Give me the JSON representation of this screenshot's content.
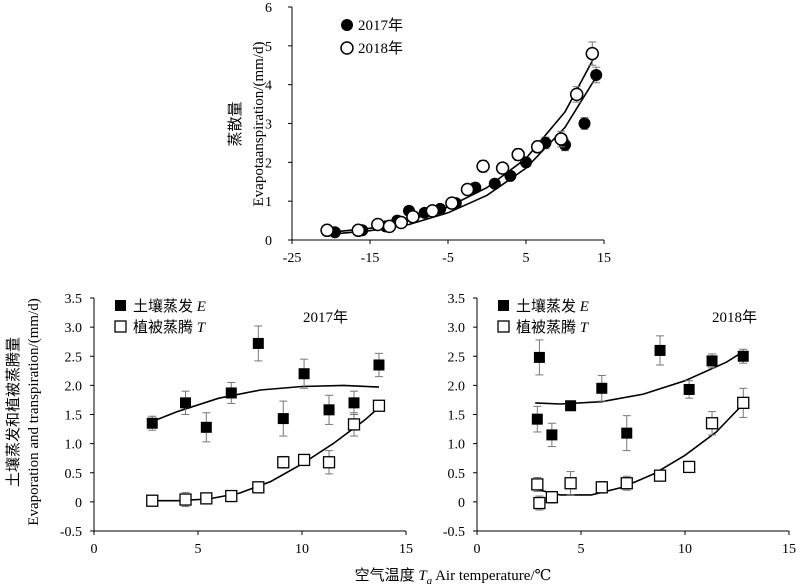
{
  "figure": {
    "shared_xlabel": "空气温度 Ta Air temperature/℃",
    "shared_xlabel_parts": {
      "cn": "空气温度 ",
      "sym": "T",
      "sub": "a",
      "en": " Air temperature/℃"
    },
    "bottom_ylabel_cn": "土壤蒸发和植被蒸腾量",
    "bottom_ylabel_en": "Evaporation and transpiration/(mm/d)"
  },
  "chart_data": [
    {
      "type": "scatter",
      "panel": "top",
      "ylabel_cn": "蒸散量",
      "ylabel_en": "Evapotaanspiration/(mm/d)",
      "xlim": [
        -25,
        15
      ],
      "ylim": [
        0,
        6
      ],
      "xticks": [
        "-25",
        "-15",
        "-5",
        "5",
        "15"
      ],
      "yticks": [
        "0",
        "1",
        "2",
        "3",
        "4",
        "5",
        "6"
      ],
      "legend_position": "top-left",
      "series": [
        {
          "name": "2017年",
          "marker": "filled-circle",
          "color": "#000000",
          "points": [
            [
              -19.5,
              0.2
            ],
            [
              -16,
              0.25
            ],
            [
              -13,
              0.35
            ],
            [
              -11.5,
              0.5
            ],
            [
              -10,
              0.75
            ],
            [
              -8,
              0.7
            ],
            [
              -6,
              0.8
            ],
            [
              -4,
              0.95
            ],
            [
              -1.5,
              1.35
            ],
            [
              1,
              1.45
            ],
            [
              3,
              1.65
            ],
            [
              5,
              2.0
            ],
            [
              7.5,
              2.5
            ],
            [
              10,
              2.45
            ],
            [
              12.5,
              3.0
            ],
            [
              14,
              4.25
            ]
          ],
          "errors": [
            0.05,
            0.06,
            0.05,
            0.08,
            0.1,
            0.08,
            0.08,
            0.08,
            0.12,
            0.1,
            0.1,
            0.1,
            0.15,
            0.15,
            0.15,
            0.2
          ],
          "fit": [
            [
              -20,
              0.15
            ],
            [
              -15,
              0.24
            ],
            [
              -10,
              0.4
            ],
            [
              -5,
              0.7
            ],
            [
              0,
              1.15
            ],
            [
              5,
              1.85
            ],
            [
              10,
              2.9
            ],
            [
              14,
              4.2
            ]
          ]
        },
        {
          "name": "2018年",
          "marker": "open-circle",
          "color": "#000000",
          "points": [
            [
              -20.5,
              0.25
            ],
            [
              -16.5,
              0.25
            ],
            [
              -14,
              0.4
            ],
            [
              -12.5,
              0.35
            ],
            [
              -11,
              0.45
            ],
            [
              -9.5,
              0.6
            ],
            [
              -7,
              0.75
            ],
            [
              -4.5,
              0.95
            ],
            [
              -2.5,
              1.3
            ],
            [
              -0.5,
              1.9
            ],
            [
              2,
              1.85
            ],
            [
              4,
              2.2
            ],
            [
              6.5,
              2.4
            ],
            [
              9.5,
              2.6
            ],
            [
              11.5,
              3.75
            ],
            [
              13.5,
              4.8
            ]
          ],
          "errors": [
            0.05,
            0.05,
            0.05,
            0.05,
            0.06,
            0.08,
            0.08,
            0.1,
            0.12,
            0.15,
            0.12,
            0.15,
            0.15,
            0.2,
            0.2,
            0.3
          ],
          "fit": [
            [
              -20,
              0.2
            ],
            [
              -15,
              0.3
            ],
            [
              -10,
              0.5
            ],
            [
              -5,
              0.85
            ],
            [
              0,
              1.35
            ],
            [
              5,
              2.1
            ],
            [
              10,
              3.3
            ],
            [
              14,
              4.8
            ]
          ]
        }
      ]
    },
    {
      "type": "scatter",
      "panel": "bottom-left",
      "title": "2017年",
      "xlim": [
        0,
        15
      ],
      "ylim": [
        -0.5,
        3.5
      ],
      "xticks": [
        "0",
        "5",
        "10",
        "15"
      ],
      "yticks": [
        "-0.5",
        "0",
        "0.5",
        "1.0",
        "1.5",
        "2.0",
        "2.5",
        "3.0",
        "3.5"
      ],
      "legend_position": "top-left",
      "series": [
        {
          "name": "土壤蒸发 E",
          "name_cn": "土壤蒸发 ",
          "name_sym": "E",
          "marker": "filled-square",
          "points": [
            [
              2.8,
              1.35
            ],
            [
              4.4,
              1.7
            ],
            [
              5.4,
              1.28
            ],
            [
              6.6,
              1.87
            ],
            [
              7.9,
              2.72
            ],
            [
              9.1,
              1.43
            ],
            [
              10.1,
              2.2
            ],
            [
              11.3,
              1.58
            ],
            [
              12.5,
              1.7
            ],
            [
              13.7,
              2.35
            ]
          ],
          "errors": [
            0.12,
            0.2,
            0.25,
            0.18,
            0.3,
            0.3,
            0.25,
            0.25,
            0.2,
            0.2
          ],
          "fit": [
            [
              2.8,
              1.38
            ],
            [
              4,
              1.55
            ],
            [
              6,
              1.78
            ],
            [
              8,
              1.92
            ],
            [
              10,
              1.98
            ],
            [
              12,
              2.0
            ],
            [
              13.7,
              1.97
            ]
          ]
        },
        {
          "name": "植被蒸腾 T",
          "name_cn": "植被蒸腾 ",
          "name_sym": "T",
          "marker": "open-square",
          "points": [
            [
              2.8,
              0.02
            ],
            [
              4.4,
              0.04
            ],
            [
              5.4,
              0.06
            ],
            [
              6.6,
              0.1
            ],
            [
              7.9,
              0.25
            ],
            [
              9.1,
              0.68
            ],
            [
              10.1,
              0.72
            ],
            [
              11.3,
              0.68
            ],
            [
              12.5,
              1.33
            ],
            [
              13.7,
              1.65
            ]
          ],
          "errors": [
            0.05,
            0.12,
            0.05,
            0.06,
            0.08,
            0.1,
            0.08,
            0.2,
            0.2,
            0.05
          ],
          "fit": [
            [
              2.8,
              0.02
            ],
            [
              4,
              0.02
            ],
            [
              5.5,
              0.05
            ],
            [
              7,
              0.15
            ],
            [
              8.5,
              0.35
            ],
            [
              10,
              0.65
            ],
            [
              11.5,
              1.0
            ],
            [
              13,
              1.4
            ],
            [
              13.7,
              1.62
            ]
          ]
        }
      ]
    },
    {
      "type": "scatter",
      "panel": "bottom-right",
      "title": "2018年",
      "xlim": [
        0,
        15
      ],
      "ylim": [
        -0.5,
        3.5
      ],
      "xticks": [
        "0",
        "5",
        "10",
        "15"
      ],
      "yticks": [
        "-0.5",
        "0",
        "0.5",
        "1.0",
        "1.5",
        "2.0",
        "2.5",
        "3.0",
        "3.5"
      ],
      "legend_position": "top-left",
      "series": [
        {
          "name": "土壤蒸发 E",
          "name_cn": "土壤蒸发 ",
          "name_sym": "E",
          "marker": "filled-square",
          "points": [
            [
              2.9,
              1.42
            ],
            [
              3.0,
              2.48
            ],
            [
              3.6,
              1.15
            ],
            [
              4.5,
              1.65
            ],
            [
              6.0,
              1.95
            ],
            [
              7.2,
              1.18
            ],
            [
              8.8,
              2.6
            ],
            [
              10.2,
              1.93
            ],
            [
              11.3,
              2.42
            ],
            [
              12.8,
              2.5
            ]
          ],
          "errors": [
            0.22,
            0.3,
            0.2,
            0.08,
            0.22,
            0.3,
            0.25,
            0.15,
            0.12,
            0.12
          ],
          "fit": [
            [
              2.8,
              1.7
            ],
            [
              4,
              1.68
            ],
            [
              6,
              1.72
            ],
            [
              8,
              1.85
            ],
            [
              10,
              2.08
            ],
            [
              12,
              2.4
            ],
            [
              12.8,
              2.58
            ]
          ]
        },
        {
          "name": "植被蒸腾 T",
          "name_cn": "植被蒸腾 ",
          "name_sym": "T",
          "marker": "open-square",
          "points": [
            [
              2.9,
              0.3
            ],
            [
              3.0,
              -0.02
            ],
            [
              3.6,
              0.08
            ],
            [
              4.5,
              0.32
            ],
            [
              6.0,
              0.25
            ],
            [
              7.2,
              0.32
            ],
            [
              8.8,
              0.45
            ],
            [
              10.2,
              0.6
            ],
            [
              11.3,
              1.35
            ],
            [
              12.8,
              1.7
            ]
          ],
          "errors": [
            0.12,
            0.12,
            0.1,
            0.2,
            0.1,
            0.12,
            0.05,
            0.08,
            0.2,
            0.25
          ],
          "fit": [
            [
              2.8,
              0.22
            ],
            [
              4,
              0.12
            ],
            [
              5.5,
              0.12
            ],
            [
              7,
              0.25
            ],
            [
              8.5,
              0.48
            ],
            [
              10,
              0.8
            ],
            [
              11.5,
              1.2
            ],
            [
              12.8,
              1.68
            ]
          ]
        }
      ]
    }
  ]
}
